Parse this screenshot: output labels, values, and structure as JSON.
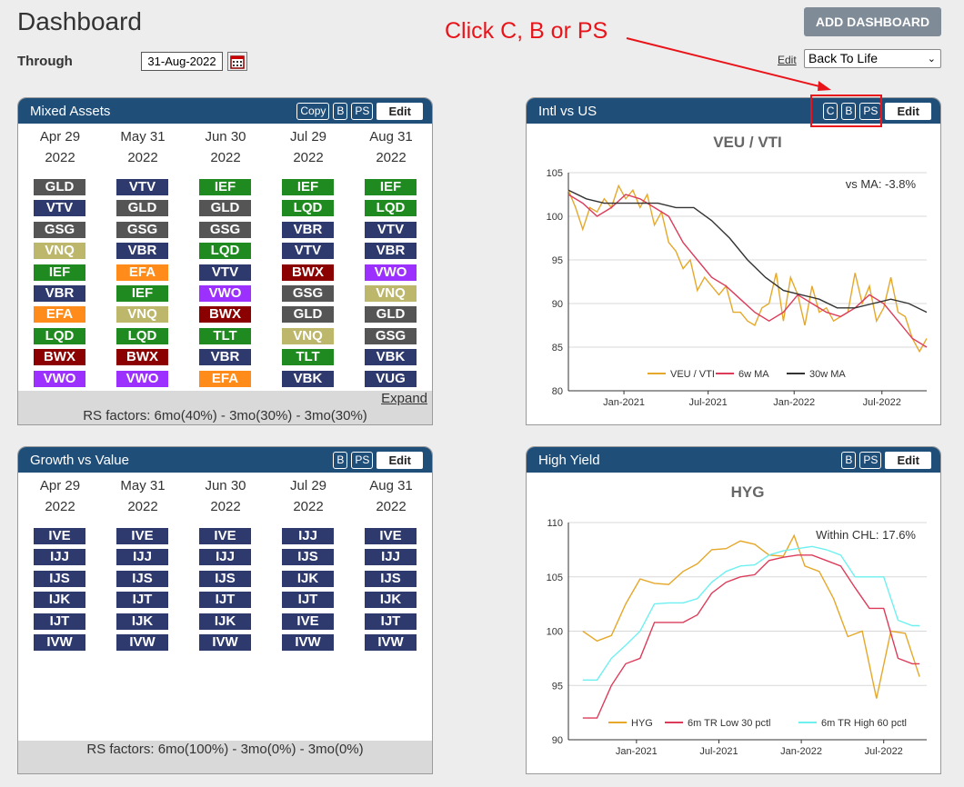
{
  "page": {
    "title": "Dashboard",
    "through_label": "Through",
    "date_value": "31-Aug-2022",
    "add_dashboard_label": "ADD DASHBOARD",
    "edit_link": "Edit",
    "dashboard_select": "Back To Life",
    "annotation": "Click C, B or PS"
  },
  "colors": {
    "header_blue": "#1f4e79",
    "annotation_red": "#e8141a",
    "ticker_navy": "#2e3a6e",
    "ticker_gray": "#555555",
    "ticker_green": "#1f8a1f",
    "ticker_khaki": "#bdb76b",
    "ticker_orange": "#ff8c1a",
    "ticker_darkred": "#8b0000",
    "ticker_purple": "#9b30ff"
  },
  "icons": [
    "calendar-icon",
    "chevron-down-icon",
    "arrow-icon"
  ],
  "mixed_assets": {
    "title": "Mixed Assets",
    "btn_copy": "Copy",
    "btn_b": "B",
    "btn_ps": "PS",
    "btn_edit": "Edit",
    "columns": [
      {
        "month": "Apr 29",
        "year": "2022",
        "tickers": [
          {
            "t": "GLD",
            "c": "ticker_gray"
          },
          {
            "t": "VTV",
            "c": "ticker_navy"
          },
          {
            "t": "GSG",
            "c": "ticker_gray"
          },
          {
            "t": "VNQ",
            "c": "ticker_khaki"
          },
          {
            "t": "IEF",
            "c": "ticker_green"
          },
          {
            "t": "VBR",
            "c": "ticker_navy"
          },
          {
            "t": "EFA",
            "c": "ticker_orange"
          },
          {
            "t": "LQD",
            "c": "ticker_green"
          },
          {
            "t": "BWX",
            "c": "ticker_darkred"
          },
          {
            "t": "VWO",
            "c": "ticker_purple"
          }
        ]
      },
      {
        "month": "May 31",
        "year": "2022",
        "tickers": [
          {
            "t": "VTV",
            "c": "ticker_navy"
          },
          {
            "t": "GLD",
            "c": "ticker_gray"
          },
          {
            "t": "GSG",
            "c": "ticker_gray"
          },
          {
            "t": "VBR",
            "c": "ticker_navy"
          },
          {
            "t": "EFA",
            "c": "ticker_orange"
          },
          {
            "t": "IEF",
            "c": "ticker_green"
          },
          {
            "t": "VNQ",
            "c": "ticker_khaki"
          },
          {
            "t": "LQD",
            "c": "ticker_green"
          },
          {
            "t": "BWX",
            "c": "ticker_darkred"
          },
          {
            "t": "VWO",
            "c": "ticker_purple"
          }
        ]
      },
      {
        "month": "Jun 30",
        "year": "2022",
        "tickers": [
          {
            "t": "IEF",
            "c": "ticker_green"
          },
          {
            "t": "GLD",
            "c": "ticker_gray"
          },
          {
            "t": "GSG",
            "c": "ticker_gray"
          },
          {
            "t": "LQD",
            "c": "ticker_green"
          },
          {
            "t": "VTV",
            "c": "ticker_navy"
          },
          {
            "t": "VWO",
            "c": "ticker_purple"
          },
          {
            "t": "BWX",
            "c": "ticker_darkred"
          },
          {
            "t": "TLT",
            "c": "ticker_green"
          },
          {
            "t": "VBR",
            "c": "ticker_navy"
          },
          {
            "t": "EFA",
            "c": "ticker_orange"
          }
        ]
      },
      {
        "month": "Jul 29",
        "year": "2022",
        "tickers": [
          {
            "t": "IEF",
            "c": "ticker_green"
          },
          {
            "t": "LQD",
            "c": "ticker_green"
          },
          {
            "t": "VBR",
            "c": "ticker_navy"
          },
          {
            "t": "VTV",
            "c": "ticker_navy"
          },
          {
            "t": "BWX",
            "c": "ticker_darkred"
          },
          {
            "t": "GSG",
            "c": "ticker_gray"
          },
          {
            "t": "GLD",
            "c": "ticker_gray"
          },
          {
            "t": "VNQ",
            "c": "ticker_khaki"
          },
          {
            "t": "TLT",
            "c": "ticker_green"
          },
          {
            "t": "VBK",
            "c": "ticker_navy"
          }
        ]
      },
      {
        "month": "Aug 31",
        "year": "2022",
        "tickers": [
          {
            "t": "IEF",
            "c": "ticker_green"
          },
          {
            "t": "LQD",
            "c": "ticker_green"
          },
          {
            "t": "VTV",
            "c": "ticker_navy"
          },
          {
            "t": "VBR",
            "c": "ticker_navy"
          },
          {
            "t": "VWO",
            "c": "ticker_purple"
          },
          {
            "t": "VNQ",
            "c": "ticker_khaki"
          },
          {
            "t": "GLD",
            "c": "ticker_gray"
          },
          {
            "t": "GSG",
            "c": "ticker_gray"
          },
          {
            "t": "VBK",
            "c": "ticker_navy"
          },
          {
            "t": "VUG",
            "c": "ticker_navy"
          }
        ]
      }
    ],
    "expand": "Expand",
    "footer": "RS factors: 6mo(40%) - 3mo(30%) - 3mo(30%)"
  },
  "growth_value": {
    "title": "Growth vs Value",
    "btn_b": "B",
    "btn_ps": "PS",
    "btn_edit": "Edit",
    "columns": [
      {
        "month": "Apr 29",
        "year": "2022",
        "tickers": [
          {
            "t": "IVE",
            "c": "ticker_navy"
          },
          {
            "t": "IJJ",
            "c": "ticker_navy"
          },
          {
            "t": "IJS",
            "c": "ticker_navy"
          },
          {
            "t": "IJK",
            "c": "ticker_navy"
          },
          {
            "t": "IJT",
            "c": "ticker_navy"
          },
          {
            "t": "IVW",
            "c": "ticker_navy"
          }
        ]
      },
      {
        "month": "May 31",
        "year": "2022",
        "tickers": [
          {
            "t": "IVE",
            "c": "ticker_navy"
          },
          {
            "t": "IJJ",
            "c": "ticker_navy"
          },
          {
            "t": "IJS",
            "c": "ticker_navy"
          },
          {
            "t": "IJT",
            "c": "ticker_navy"
          },
          {
            "t": "IJK",
            "c": "ticker_navy"
          },
          {
            "t": "IVW",
            "c": "ticker_navy"
          }
        ]
      },
      {
        "month": "Jun 30",
        "year": "2022",
        "tickers": [
          {
            "t": "IVE",
            "c": "ticker_navy"
          },
          {
            "t": "IJJ",
            "c": "ticker_navy"
          },
          {
            "t": "IJS",
            "c": "ticker_navy"
          },
          {
            "t": "IJT",
            "c": "ticker_navy"
          },
          {
            "t": "IJK",
            "c": "ticker_navy"
          },
          {
            "t": "IVW",
            "c": "ticker_navy"
          }
        ]
      },
      {
        "month": "Jul 29",
        "year": "2022",
        "tickers": [
          {
            "t": "IJJ",
            "c": "ticker_navy"
          },
          {
            "t": "IJS",
            "c": "ticker_navy"
          },
          {
            "t": "IJK",
            "c": "ticker_navy"
          },
          {
            "t": "IJT",
            "c": "ticker_navy"
          },
          {
            "t": "IVE",
            "c": "ticker_navy"
          },
          {
            "t": "IVW",
            "c": "ticker_navy"
          }
        ]
      },
      {
        "month": "Aug 31",
        "year": "2022",
        "tickers": [
          {
            "t": "IVE",
            "c": "ticker_navy"
          },
          {
            "t": "IJJ",
            "c": "ticker_navy"
          },
          {
            "t": "IJS",
            "c": "ticker_navy"
          },
          {
            "t": "IJK",
            "c": "ticker_navy"
          },
          {
            "t": "IJT",
            "c": "ticker_navy"
          },
          {
            "t": "IVW",
            "c": "ticker_navy"
          }
        ]
      }
    ],
    "footer": "RS factors: 6mo(100%) - 3mo(0%) - 3mo(0%)"
  },
  "intl_us": {
    "title": "Intl vs US",
    "btn_c": "C",
    "btn_b": "B",
    "btn_ps": "PS",
    "btn_edit": "Edit"
  },
  "high_yield": {
    "title": "High Yield",
    "btn_b": "B",
    "btn_ps": "PS",
    "btn_edit": "Edit"
  },
  "chart_data": [
    {
      "type": "line",
      "title": "VEU / VTI",
      "annotation": "vs MA: -3.8%",
      "ylim": [
        80,
        105
      ],
      "yticks": [
        80,
        85,
        90,
        95,
        100,
        105
      ],
      "x_range": [
        0,
        100
      ],
      "xticks": [
        {
          "x": 15.5,
          "label": "Jan-2021"
        },
        {
          "x": 39,
          "label": "Jul-2021"
        },
        {
          "x": 63,
          "label": "Jan-2022"
        },
        {
          "x": 87.5,
          "label": "Jul-2022"
        }
      ],
      "series": [
        {
          "name": "VEU / VTI",
          "color": "#e5a82a",
          "x": [
            0,
            2,
            4,
            6,
            8,
            10,
            12,
            14,
            16,
            18,
            20,
            22,
            24,
            26,
            28,
            30,
            32,
            34,
            36,
            38,
            40,
            42,
            44,
            46,
            48,
            50,
            52,
            54,
            56,
            58,
            60,
            62,
            64,
            66,
            68,
            70,
            72,
            74,
            76,
            78,
            80,
            82,
            84,
            86,
            88,
            90,
            92,
            94,
            96,
            98,
            100
          ],
          "y": [
            103,
            101,
            98.5,
            101,
            100.5,
            102,
            101,
            103.5,
            102,
            103,
            101,
            102.5,
            99,
            100.5,
            97,
            96,
            94,
            95,
            91.5,
            93,
            92,
            91,
            92,
            89,
            89,
            88,
            87.5,
            89.5,
            90,
            93.5,
            88,
            93,
            91,
            87.5,
            92,
            89,
            89.5,
            88,
            88.5,
            89,
            93.5,
            90,
            92,
            88,
            89.5,
            93,
            89,
            88.5,
            86,
            84.5,
            86
          ]
        },
        {
          "name": "6w MA",
          "color": "#dc3c5a",
          "x": [
            0,
            4,
            8,
            12,
            16,
            20,
            24,
            28,
            32,
            36,
            40,
            44,
            48,
            52,
            56,
            60,
            64,
            68,
            72,
            76,
            80,
            84,
            88,
            92,
            96,
            100
          ],
          "y": [
            102.5,
            101.5,
            100,
            101,
            102.5,
            102,
            101,
            100,
            97,
            95,
            93,
            92,
            90.5,
            89,
            88,
            89,
            91,
            90,
            89,
            88.5,
            89.5,
            91,
            90,
            88,
            86,
            85
          ]
        },
        {
          "name": "30w MA",
          "color": "#333333",
          "x": [
            0,
            5,
            10,
            15,
            20,
            25,
            30,
            35,
            40,
            45,
            50,
            55,
            60,
            65,
            70,
            75,
            80,
            85,
            90,
            95,
            100
          ],
          "y": [
            103,
            102,
            101.5,
            101.5,
            101.5,
            101.5,
            101,
            101,
            99.5,
            97.5,
            95,
            93,
            91.5,
            91,
            90.5,
            89.5,
            89.5,
            90,
            90.5,
            90,
            89
          ]
        }
      ],
      "legend": "bottom"
    },
    {
      "type": "line",
      "title": "HYG",
      "annotation": "Within CHL: 17.6%",
      "ylim": [
        90,
        110
      ],
      "yticks": [
        90,
        95,
        100,
        105,
        110
      ],
      "x_range": [
        0,
        100
      ],
      "xticks": [
        {
          "x": 19,
          "label": "Jan-2021"
        },
        {
          "x": 42,
          "label": "Jul-2021"
        },
        {
          "x": 65,
          "label": "Jan-2022"
        },
        {
          "x": 88,
          "label": "Jul-2022"
        }
      ],
      "series": [
        {
          "name": "HYG",
          "color": "#e5a82a",
          "x": [
            4,
            8,
            12,
            16,
            20,
            24,
            28,
            32,
            36,
            40,
            44,
            48,
            52,
            56,
            60,
            63,
            66,
            70,
            74,
            78,
            82,
            86,
            90,
            94,
            98
          ],
          "y": [
            100,
            99.1,
            99.6,
            102.5,
            104.8,
            104.4,
            104.3,
            105.5,
            106.2,
            107.5,
            107.6,
            108.3,
            108,
            107,
            106.9,
            108.8,
            106,
            105.5,
            103,
            99.5,
            100,
            93.8,
            100,
            99.8,
            95.8
          ]
        },
        {
          "name": "6m TR Low 30 pctl",
          "color": "#dc3c5a",
          "x": [
            4,
            8,
            12,
            16,
            20,
            24,
            28,
            32,
            36,
            40,
            44,
            48,
            52,
            56,
            60,
            64,
            68,
            72,
            76,
            80,
            84,
            88,
            92,
            96,
            98
          ],
          "y": [
            92,
            92,
            95,
            97,
            97.5,
            100.8,
            100.8,
            100.8,
            101.5,
            103.5,
            104.5,
            105,
            105.2,
            106.5,
            106.8,
            107,
            107,
            106.5,
            106,
            104,
            102.1,
            102.1,
            97.5,
            97,
            97
          ]
        },
        {
          "name": "6m TR High 60 pctl",
          "color": "#6ff0f0",
          "x": [
            4,
            8,
            12,
            16,
            20,
            24,
            28,
            32,
            36,
            40,
            44,
            48,
            52,
            56,
            60,
            64,
            68,
            72,
            76,
            80,
            84,
            88,
            92,
            96,
            98
          ],
          "y": [
            95.5,
            95.5,
            97.5,
            98.7,
            100,
            102.5,
            102.6,
            102.6,
            103,
            104.5,
            105.5,
            106,
            106.1,
            107,
            107.4,
            107.6,
            107.8,
            107.5,
            107,
            105,
            105,
            105,
            101,
            100.5,
            100.5
          ]
        }
      ],
      "legend": "bottom"
    }
  ]
}
